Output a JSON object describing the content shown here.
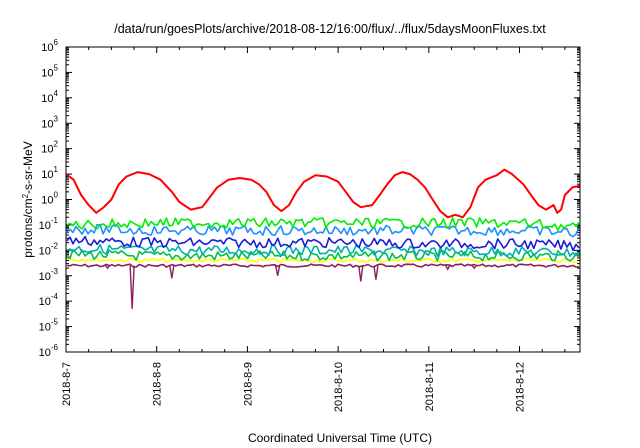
{
  "chart_data": {
    "type": "line",
    "title": "/data/run/goesPlots/archive/2018-08-12/16:00/flux/../flux/5daysMoonFluxes.txt",
    "xlabel": "Coordinated Universal Time (UTC)",
    "ylabel": {
      "pre": "protons/cm",
      "sup": "2",
      "post": "-s-sr-MeV"
    },
    "yscale": "log",
    "ylim": [
      1e-06,
      1000000.0
    ],
    "xlim": [
      "2018-08-07T00:00",
      "2018-08-12T16:00"
    ],
    "x_ticks": [
      "2018-8-7",
      "2018-8-8",
      "2018-8-9",
      "2018-8-10",
      "2018-8-11",
      "2018-8-12"
    ],
    "y_ticks": [
      {
        "exp": "-6"
      },
      {
        "exp": "-5"
      },
      {
        "exp": "-4"
      },
      {
        "exp": "-3"
      },
      {
        "exp": "-2"
      },
      {
        "exp": "-1"
      },
      {
        "exp": "0"
      },
      {
        "exp": "1"
      },
      {
        "exp": "2"
      },
      {
        "exp": "3"
      },
      {
        "exp": "4"
      },
      {
        "exp": "5"
      },
      {
        "exp": "6"
      }
    ],
    "grid": false,
    "series": [
      {
        "color": "#ff0000",
        "points": [
          [
            "2018-08-07T00:00",
            10
          ],
          [
            "2018-08-07T02:00",
            6
          ],
          [
            "2018-08-07T04:00",
            1.5
          ],
          [
            "2018-08-07T06:00",
            0.6
          ],
          [
            "2018-08-07T08:00",
            0.3
          ],
          [
            "2018-08-07T10:00",
            0.5
          ],
          [
            "2018-08-07T12:00",
            1.0
          ],
          [
            "2018-08-07T14:00",
            4
          ],
          [
            "2018-08-07T16:00",
            8
          ],
          [
            "2018-08-07T19:00",
            12
          ],
          [
            "2018-08-07T22:00",
            10
          ],
          [
            "2018-08-08T01:00",
            6
          ],
          [
            "2018-08-08T04:00",
            2
          ],
          [
            "2018-08-08T06:00",
            0.8
          ],
          [
            "2018-08-08T09:00",
            0.4
          ],
          [
            "2018-08-08T12:00",
            0.5
          ],
          [
            "2018-08-08T14:00",
            1.2
          ],
          [
            "2018-08-08T16:00",
            3
          ],
          [
            "2018-08-08T19:00",
            6
          ],
          [
            "2018-08-08T22:00",
            7
          ],
          [
            "2018-08-09T01:00",
            6
          ],
          [
            "2018-08-09T03:00",
            4
          ],
          [
            "2018-08-09T05:00",
            2
          ],
          [
            "2018-08-09T07:00",
            0.6
          ],
          [
            "2018-08-09T09:00",
            0.35
          ],
          [
            "2018-08-09T11:00",
            0.6
          ],
          [
            "2018-08-09T13:00",
            2
          ],
          [
            "2018-08-09T15:00",
            5
          ],
          [
            "2018-08-09T18:00",
            9
          ],
          [
            "2018-08-09T21:00",
            8
          ],
          [
            "2018-08-10T00:00",
            5
          ],
          [
            "2018-08-10T02:00",
            2
          ],
          [
            "2018-08-10T04:00",
            0.8
          ],
          [
            "2018-08-10T06:00",
            0.5
          ],
          [
            "2018-08-10T09:00",
            0.6
          ],
          [
            "2018-08-10T11:00",
            1.5
          ],
          [
            "2018-08-10T13:00",
            4
          ],
          [
            "2018-08-10T15:00",
            9
          ],
          [
            "2018-08-10T17:00",
            12
          ],
          [
            "2018-08-10T19:00",
            10
          ],
          [
            "2018-08-10T21:00",
            6
          ],
          [
            "2018-08-10T23:00",
            3
          ],
          [
            "2018-08-11T01:00",
            1.0
          ],
          [
            "2018-08-11T03:00",
            0.35
          ],
          [
            "2018-08-11T05:00",
            0.2
          ],
          [
            "2018-08-11T07:00",
            0.25
          ],
          [
            "2018-08-11T09:00",
            0.2
          ],
          [
            "2018-08-11T11:00",
            0.5
          ],
          [
            "2018-08-11T13:00",
            3
          ],
          [
            "2018-08-11T15:00",
            6
          ],
          [
            "2018-08-11T18:00",
            9
          ],
          [
            "2018-08-11T20:00",
            15
          ],
          [
            "2018-08-11T22:00",
            10
          ],
          [
            "2018-08-12T01:00",
            4
          ],
          [
            "2018-08-12T03:00",
            1.5
          ],
          [
            "2018-08-12T05:00",
            0.6
          ],
          [
            "2018-08-12T07:00",
            0.4
          ],
          [
            "2018-08-12T09:00",
            0.6
          ],
          [
            "2018-08-12T10:00",
            0.3
          ],
          [
            "2018-08-12T11:00",
            0.4
          ],
          [
            "2018-08-12T12:00",
            1.5
          ],
          [
            "2018-08-12T14:00",
            3
          ],
          [
            "2018-08-12T16:00",
            3.5
          ]
        ]
      },
      {
        "color": "#00ee00",
        "points": [
          [
            "2018-08-07T00:00",
            0.1
          ],
          [
            "2018-08-08T00:00",
            0.12
          ],
          [
            "2018-08-09T00:00",
            0.12
          ],
          [
            "2018-08-10T00:00",
            0.12
          ],
          [
            "2018-08-11T00:00",
            0.12
          ],
          [
            "2018-08-12T00:00",
            0.12
          ],
          [
            "2018-08-12T16:00",
            0.08
          ]
        ]
      },
      {
        "color": "#1e90ff",
        "points": [
          [
            "2018-08-07T00:00",
            0.07
          ],
          [
            "2018-08-08T00:00",
            0.06
          ],
          [
            "2018-08-09T00:00",
            0.06
          ],
          [
            "2018-08-10T00:00",
            0.06
          ],
          [
            "2018-08-11T00:00",
            0.06
          ],
          [
            "2018-08-12T00:00",
            0.06
          ],
          [
            "2018-08-12T16:00",
            0.05
          ]
        ]
      },
      {
        "color": "#1c1cd8",
        "points": [
          [
            "2018-08-07T00:00",
            0.025
          ],
          [
            "2018-08-08T00:00",
            0.02
          ],
          [
            "2018-08-09T00:00",
            0.02
          ],
          [
            "2018-08-10T00:00",
            0.02
          ],
          [
            "2018-08-11T00:00",
            0.018
          ],
          [
            "2018-08-12T00:00",
            0.018
          ],
          [
            "2018-08-12T16:00",
            0.015
          ]
        ]
      },
      {
        "color": "#00b0b0",
        "points": [
          [
            "2018-08-07T00:00",
            0.012
          ],
          [
            "2018-08-08T00:00",
            0.01
          ],
          [
            "2018-08-09T00:00",
            0.01
          ],
          [
            "2018-08-10T00:00",
            0.01
          ],
          [
            "2018-08-11T00:00",
            0.009
          ],
          [
            "2018-08-12T00:00",
            0.009
          ],
          [
            "2018-08-12T16:00",
            0.008
          ]
        ]
      },
      {
        "color": "#00c050",
        "points": [
          [
            "2018-08-07T00:00",
            0.007
          ],
          [
            "2018-08-08T00:00",
            0.006
          ],
          [
            "2018-08-09T00:00",
            0.006
          ],
          [
            "2018-08-10T00:00",
            0.006
          ],
          [
            "2018-08-11T00:00",
            0.006
          ],
          [
            "2018-08-12T00:00",
            0.006
          ],
          [
            "2018-08-12T16:00",
            0.006
          ]
        ]
      },
      {
        "color": "#ffff00",
        "points": [
          [
            "2018-08-07T00:00",
            0.0045
          ],
          [
            "2018-08-08T00:00",
            0.004
          ],
          [
            "2018-08-09T00:00",
            0.004
          ],
          [
            "2018-08-10T00:00",
            0.004
          ],
          [
            "2018-08-11T00:00",
            0.004
          ],
          [
            "2018-08-12T00:00",
            0.004
          ],
          [
            "2018-08-12T16:00",
            0.004
          ]
        ]
      },
      {
        "color": "#8b2060",
        "points": [
          [
            "2018-08-07T00:00",
            0.0025
          ],
          [
            "2018-08-08T00:00",
            0.0025
          ],
          [
            "2018-08-09T00:00",
            0.0025
          ],
          [
            "2018-08-10T00:00",
            0.0025
          ],
          [
            "2018-08-11T00:00",
            0.0025
          ],
          [
            "2018-08-12T00:00",
            0.0025
          ],
          [
            "2018-08-12T16:00",
            0.0025
          ]
        ]
      }
    ],
    "dips": [
      {
        "x": "2018-08-07T11:00",
        "y": 0.002
      },
      {
        "x": "2018-08-07T17:30",
        "y": 5e-05
      },
      {
        "x": "2018-08-08T04:00",
        "y": 0.0008
      },
      {
        "x": "2018-08-09T08:00",
        "y": 0.001
      },
      {
        "x": "2018-08-10T06:00",
        "y": 0.0006
      },
      {
        "x": "2018-08-10T10:00",
        "y": 0.0007
      },
      {
        "x": "2018-08-11T05:00",
        "y": 0.0018
      },
      {
        "x": "2018-08-11T12:00",
        "y": 0.002
      }
    ]
  }
}
